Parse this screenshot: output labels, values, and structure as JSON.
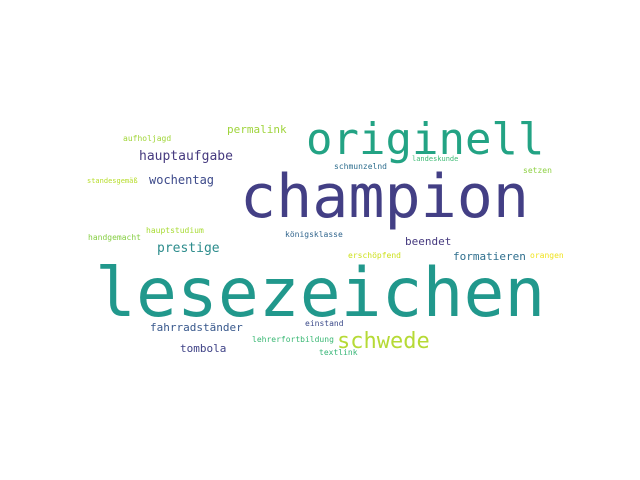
{
  "wordcloud": {
    "words": [
      {
        "text": "lesezeichen",
        "color": "#21988c"
      },
      {
        "text": "champion",
        "color": "#433f85"
      },
      {
        "text": "originell",
        "color": "#23a384"
      },
      {
        "text": "schwede",
        "color": "#b6da36"
      },
      {
        "text": "hauptaufgabe",
        "color": "#463a7f"
      },
      {
        "text": "permalink",
        "color": "#9fd43b"
      },
      {
        "text": "wochentag",
        "color": "#3d4a8a"
      },
      {
        "text": "prestige",
        "color": "#2c8c8c"
      },
      {
        "text": "formatieren",
        "color": "#2f6f8e"
      },
      {
        "text": "fahrradständer",
        "color": "#38588c"
      },
      {
        "text": "tombola",
        "color": "#404387"
      },
      {
        "text": "beendet",
        "color": "#463a7f"
      },
      {
        "text": "aufholjagd",
        "color": "#a2d63a"
      },
      {
        "text": "standesgemäß",
        "color": "#b7dd2b"
      },
      {
        "text": "handgemacht",
        "color": "#87cf45"
      },
      {
        "text": "hauptstudium",
        "color": "#a8db34"
      },
      {
        "text": "königsklasse",
        "color": "#31658d"
      },
      {
        "text": "schmunzelnd",
        "color": "#2e6e8e"
      },
      {
        "text": "landeskunde",
        "color": "#3ebb75"
      },
      {
        "text": "setzen",
        "color": "#8ed143"
      },
      {
        "text": "erschöpfend",
        "color": "#cde11d"
      },
      {
        "text": "orangen",
        "color": "#f0e31f"
      },
      {
        "text": "einstand",
        "color": "#3c4b8a"
      },
      {
        "text": "lehrerfortbildung",
        "color": "#3ab874"
      },
      {
        "text": "textlink",
        "color": "#36b577"
      }
    ]
  }
}
